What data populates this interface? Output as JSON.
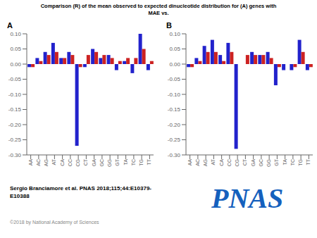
{
  "title": "Comparison (R) of the mean observed to expected dinucleotide distribution for (A) genes with\nMAE vs.",
  "annotations": [
    "Sergio Branciamore et al. PNAS 2018;115;44:E10379-\nE10388",
    "©2018 by National Academy of Sciences",
    "PNAS"
  ],
  "chart_data": [
    {
      "type": "bar",
      "title": "A",
      "categories": [
        "AA",
        "AC",
        "AG",
        "AT",
        "CA",
        "CC",
        "CG",
        "CT",
        "GA",
        "GC",
        "GG",
        "GT",
        "TA",
        "TC",
        "TG",
        "TT"
      ],
      "series": [
        {
          "color": "#2222cc",
          "values": [
            -0.01,
            0.02,
            0.04,
            0.07,
            0.02,
            0.04,
            -0.27,
            -0.01,
            0.05,
            0.02,
            0.03,
            -0.02,
            0.01,
            -0.03,
            0.1,
            -0.02
          ]
        },
        {
          "color": "#cc2222",
          "values": [
            -0.01,
            0.01,
            0.03,
            0.04,
            0.02,
            0.03,
            -0.01,
            0.03,
            0.04,
            0.03,
            0.02,
            0.01,
            0.02,
            0.02,
            0.05,
            0.01
          ]
        }
      ],
      "ylim": [
        -0.3,
        0.1
      ],
      "yticks": [
        {
          "value": 0.1,
          "label": "0.10"
        },
        {
          "value": 0.05,
          "label": "0.05"
        },
        {
          "value": 0.0,
          "label": "0.00"
        },
        {
          "value": -0.05,
          "label": "-0.05"
        },
        {
          "value": -0.1,
          "label": "-0.10"
        },
        {
          "value": -0.15,
          "label": "-0.15"
        },
        {
          "value": -0.2,
          "label": "-0.20"
        },
        {
          "value": -0.25,
          "label": "-0.25"
        },
        {
          "value": -0.3,
          "label": "-0.30"
        }
      ],
      "grid": false
    },
    {
      "type": "bar",
      "title": "B",
      "categories": [
        "AA",
        "AC",
        "AG",
        "AT",
        "CA",
        "CC",
        "CG",
        "CT",
        "GA",
        "GC",
        "GG",
        "GT",
        "TA",
        "TC",
        "TG",
        "TT"
      ],
      "series": [
        {
          "color": "#2222cc",
          "values": [
            -0.01,
            0.02,
            0.06,
            0.08,
            0.03,
            0.07,
            -0.28,
            0.0,
            0.04,
            0.03,
            0.04,
            -0.07,
            -0.02,
            -0.02,
            0.08,
            -0.02
          ]
        },
        {
          "color": "#cc2222",
          "values": [
            -0.01,
            0.01,
            0.04,
            0.04,
            0.01,
            0.04,
            0.0,
            0.03,
            0.03,
            0.03,
            0.02,
            -0.01,
            0.0,
            -0.01,
            0.04,
            -0.01
          ]
        }
      ],
      "ylim": [
        -0.3,
        0.1
      ],
      "yticks": [
        {
          "value": 0.1,
          "label": "0.10"
        },
        {
          "value": 0.05,
          "label": "0.05"
        },
        {
          "value": 0.0,
          "label": "0.00"
        },
        {
          "value": -0.05,
          "label": "-0.05"
        },
        {
          "value": -0.1,
          "label": "-0.10"
        },
        {
          "value": -0.15,
          "label": "-0.15"
        },
        {
          "value": -0.2,
          "label": "-0.20"
        },
        {
          "value": -0.25,
          "label": "-0.25"
        },
        {
          "value": -0.3,
          "label": "-0.30"
        }
      ],
      "grid": false
    }
  ]
}
